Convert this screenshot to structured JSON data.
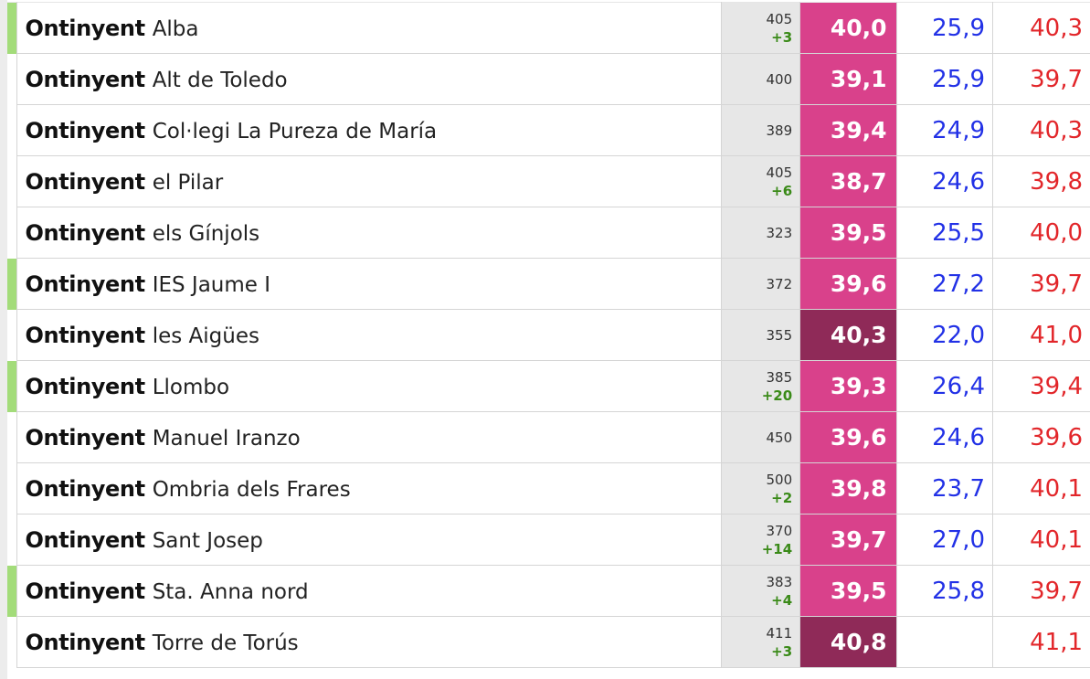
{
  "colors": {
    "highlight_bar": "#a3dc7a",
    "score_pink": "#d9418b",
    "score_dark": "#8f2a58",
    "blue_value": "#2231e6",
    "red_value": "#e2262a",
    "delta_green": "#3a8a18"
  },
  "rows": [
    {
      "marked": true,
      "city": "Ontinyent",
      "place": "Alba",
      "count": "405",
      "delta": "+3",
      "score": "40,0",
      "score_level": "high",
      "blue": "25,9",
      "red": "40,3"
    },
    {
      "marked": false,
      "city": "Ontinyent",
      "place": "Alt de Toledo",
      "count": "400",
      "delta": "",
      "score": "39,1",
      "score_level": "high",
      "blue": "25,9",
      "red": "39,7"
    },
    {
      "marked": false,
      "city": "Ontinyent",
      "place": "Col·legi La Pureza de María",
      "count": "389",
      "delta": "",
      "score": "39,4",
      "score_level": "high",
      "blue": "24,9",
      "red": "40,3"
    },
    {
      "marked": false,
      "city": "Ontinyent",
      "place": "el Pilar",
      "count": "405",
      "delta": "+6",
      "score": "38,7",
      "score_level": "high",
      "blue": "24,6",
      "red": "39,8"
    },
    {
      "marked": false,
      "city": "Ontinyent",
      "place": "els Gínjols",
      "count": "323",
      "delta": "",
      "score": "39,5",
      "score_level": "high",
      "blue": "25,5",
      "red": "40,0"
    },
    {
      "marked": true,
      "city": "Ontinyent",
      "place": "IES Jaume I",
      "count": "372",
      "delta": "",
      "score": "39,6",
      "score_level": "high",
      "blue": "27,2",
      "red": "39,7"
    },
    {
      "marked": false,
      "city": "Ontinyent",
      "place": "les Aigües",
      "count": "355",
      "delta": "",
      "score": "40,3",
      "score_level": "extreme",
      "blue": "22,0",
      "red": "41,0"
    },
    {
      "marked": true,
      "city": "Ontinyent",
      "place": "Llombo",
      "count": "385",
      "delta": "+20",
      "score": "39,3",
      "score_level": "high",
      "blue": "26,4",
      "red": "39,4"
    },
    {
      "marked": false,
      "city": "Ontinyent",
      "place": "Manuel Iranzo",
      "count": "450",
      "delta": "",
      "score": "39,6",
      "score_level": "high",
      "blue": "24,6",
      "red": "39,6"
    },
    {
      "marked": false,
      "city": "Ontinyent",
      "place": "Ombria dels Frares",
      "count": "500",
      "delta": "+2",
      "score": "39,8",
      "score_level": "high",
      "blue": "23,7",
      "red": "40,1"
    },
    {
      "marked": false,
      "city": "Ontinyent",
      "place": "Sant Josep",
      "count": "370",
      "delta": "+14",
      "score": "39,7",
      "score_level": "high",
      "blue": "27,0",
      "red": "40,1"
    },
    {
      "marked": true,
      "city": "Ontinyent",
      "place": "Sta. Anna nord",
      "count": "383",
      "delta": "+4",
      "score": "39,5",
      "score_level": "high",
      "blue": "25,8",
      "red": "39,7"
    },
    {
      "marked": false,
      "city": "Ontinyent",
      "place": "Torre de Torús",
      "count": "411",
      "delta": "+3",
      "score": "40,8",
      "score_level": "extreme",
      "blue": "",
      "red": "41,1"
    }
  ]
}
